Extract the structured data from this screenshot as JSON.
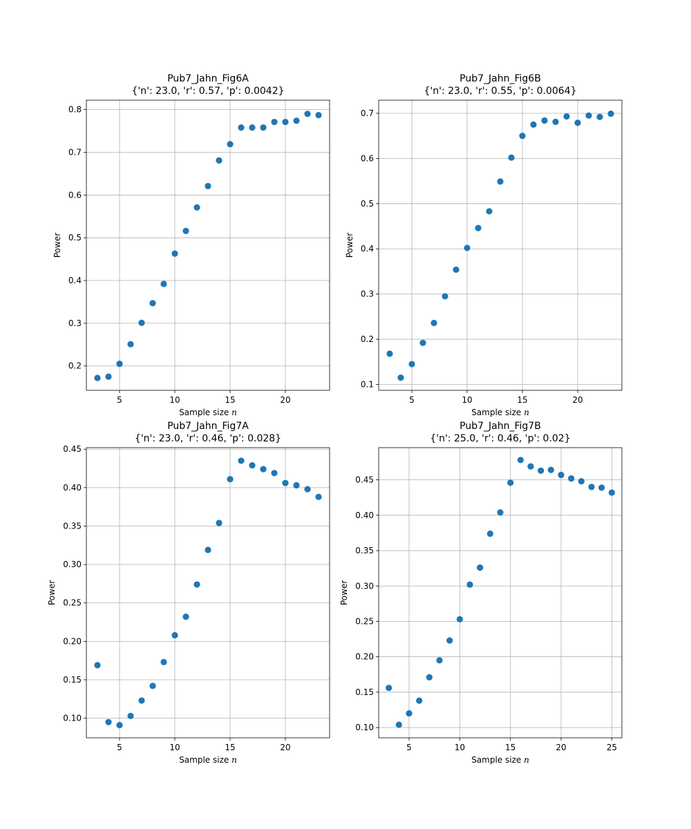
{
  "chart_data": [
    {
      "type": "scatter",
      "title": "Pub7_Jahn_Fig6A",
      "subtitle": "{'n': 23.0, 'r': 0.57, 'p': 0.0042}",
      "xlabel": "Sample size n",
      "ylabel": "Power",
      "xlim": [
        2.0,
        24.0
      ],
      "ylim": [
        0.143,
        0.822
      ],
      "xticks": [
        5,
        10,
        15,
        20
      ],
      "yticks": [
        0.2,
        0.3,
        0.4,
        0.5,
        0.6,
        0.7,
        0.8
      ],
      "grid": true,
      "color": "#1f77b4",
      "x": [
        3,
        4,
        5,
        6,
        7,
        8,
        9,
        10,
        11,
        12,
        13,
        14,
        15,
        16,
        17,
        18,
        19,
        20,
        21,
        22,
        23
      ],
      "y": [
        0.172,
        0.175,
        0.205,
        0.251,
        0.301,
        0.347,
        0.392,
        0.463,
        0.516,
        0.571,
        0.621,
        0.681,
        0.719,
        0.758,
        0.758,
        0.758,
        0.771,
        0.771,
        0.774,
        0.79,
        0.787
      ]
    },
    {
      "type": "scatter",
      "title": "Pub7_Jahn_Fig6B",
      "subtitle": "{'n': 23.0, 'r': 0.55, 'p': 0.0064}",
      "xlabel": "Sample size n",
      "ylabel": "Power",
      "xlim": [
        2.0,
        24.0
      ],
      "ylim": [
        0.087,
        0.729
      ],
      "xticks": [
        5,
        10,
        15,
        20
      ],
      "yticks": [
        0.1,
        0.2,
        0.3,
        0.4,
        0.5,
        0.6,
        0.7
      ],
      "grid": true,
      "color": "#1f77b4",
      "x": [
        3,
        4,
        5,
        6,
        7,
        8,
        9,
        10,
        11,
        12,
        13,
        14,
        15,
        16,
        17,
        18,
        19,
        20,
        21,
        22,
        23
      ],
      "y": [
        0.168,
        0.115,
        0.145,
        0.192,
        0.236,
        0.295,
        0.354,
        0.402,
        0.446,
        0.483,
        0.549,
        0.602,
        0.65,
        0.675,
        0.684,
        0.681,
        0.693,
        0.679,
        0.695,
        0.692,
        0.699
      ]
    },
    {
      "type": "scatter",
      "title": "Pub7_Jahn_Fig7A",
      "subtitle": "{'n': 23.0, 'r': 0.46, 'p': 0.028}",
      "xlabel": "Sample size n",
      "ylabel": "Power",
      "xlim": [
        2.0,
        24.0
      ],
      "ylim": [
        0.0745,
        0.452
      ],
      "xticks": [
        5,
        10,
        15,
        20
      ],
      "yticks": [
        0.1,
        0.15,
        0.2,
        0.25,
        0.3,
        0.35,
        0.4,
        0.45
      ],
      "grid": true,
      "color": "#1f77b4",
      "x": [
        3,
        4,
        5,
        6,
        7,
        8,
        9,
        10,
        11,
        12,
        13,
        14,
        15,
        16,
        17,
        18,
        19,
        20,
        21,
        22,
        23
      ],
      "y": [
        0.169,
        0.095,
        0.091,
        0.103,
        0.123,
        0.142,
        0.173,
        0.208,
        0.232,
        0.274,
        0.319,
        0.354,
        0.411,
        0.435,
        0.429,
        0.424,
        0.419,
        0.406,
        0.403,
        0.398,
        0.388
      ]
    },
    {
      "type": "scatter",
      "title": "Pub7_Jahn_Fig7B",
      "subtitle": "{'n': 25.0, 'r': 0.46, 'p': 0.02}",
      "xlabel": "Sample size n",
      "ylabel": "Power",
      "xlim": [
        2.0,
        26.0
      ],
      "ylim": [
        0.0855,
        0.4955
      ],
      "xticks": [
        5,
        10,
        15,
        20,
        25
      ],
      "yticks": [
        0.1,
        0.15,
        0.2,
        0.25,
        0.3,
        0.35,
        0.4,
        0.45
      ],
      "grid": true,
      "color": "#1f77b4",
      "x": [
        3,
        4,
        5,
        6,
        7,
        8,
        9,
        10,
        11,
        12,
        13,
        14,
        15,
        16,
        17,
        18,
        19,
        20,
        21,
        22,
        23,
        24,
        25
      ],
      "y": [
        0.156,
        0.104,
        0.12,
        0.138,
        0.171,
        0.195,
        0.223,
        0.253,
        0.302,
        0.326,
        0.374,
        0.404,
        0.446,
        0.478,
        0.469,
        0.463,
        0.464,
        0.457,
        0.452,
        0.448,
        0.44,
        0.439,
        0.432
      ]
    }
  ]
}
